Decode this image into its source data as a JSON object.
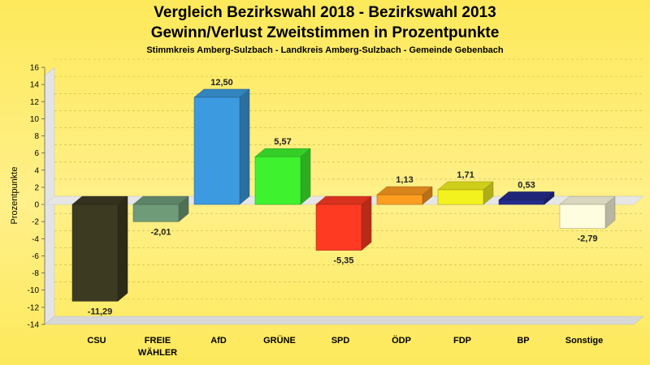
{
  "chart_data": {
    "type": "bar",
    "title_line1": "Vergleich Bezirkswahl 2018 - Bezirkswahl 2013",
    "title_line2": "Gewinn/Verlust Zweitstimmen in Prozentpunkte",
    "subtitle": "Stimmkreis Amberg-Sulzbach - Landkreis Amberg-Sulzbach - Gemeinde Gebenbach",
    "ylabel": "Prozentpunkte",
    "xlabel": "",
    "ylim": [
      -14,
      16
    ],
    "yticks": [
      16,
      14,
      12,
      10,
      8,
      6,
      4,
      2,
      0,
      -2,
      -4,
      -6,
      -8,
      -10,
      -12,
      -14
    ],
    "grid": true,
    "categories": [
      {
        "line1": "CSU",
        "line2": ""
      },
      {
        "line1": "FREIE",
        "line2": "WÄHLER"
      },
      {
        "line1": "AfD",
        "line2": ""
      },
      {
        "line1": "GRÜNE",
        "line2": ""
      },
      {
        "line1": "SPD",
        "line2": ""
      },
      {
        "line1": "ÖDP",
        "line2": ""
      },
      {
        "line1": "FDP",
        "line2": ""
      },
      {
        "line1": "BP",
        "line2": ""
      },
      {
        "line1": "Sonstige",
        "line2": ""
      }
    ],
    "values": [
      -11.29,
      -2.01,
      12.5,
      5.57,
      -5.35,
      1.13,
      1.71,
      0.53,
      -2.79
    ],
    "value_labels": [
      "-11,29",
      "-2,01",
      "12,50",
      "5,57",
      "-5,35",
      "1,13",
      "1,71",
      "0,53",
      "-2,79"
    ],
    "colors": [
      "#3d3a22",
      "#6f9b78",
      "#3c9ae0",
      "#3ef22e",
      "#ff3a22",
      "#ff9d20",
      "#f4f21e",
      "#242c8c",
      "#fffde0"
    ],
    "background_color": "#fde95a"
  }
}
